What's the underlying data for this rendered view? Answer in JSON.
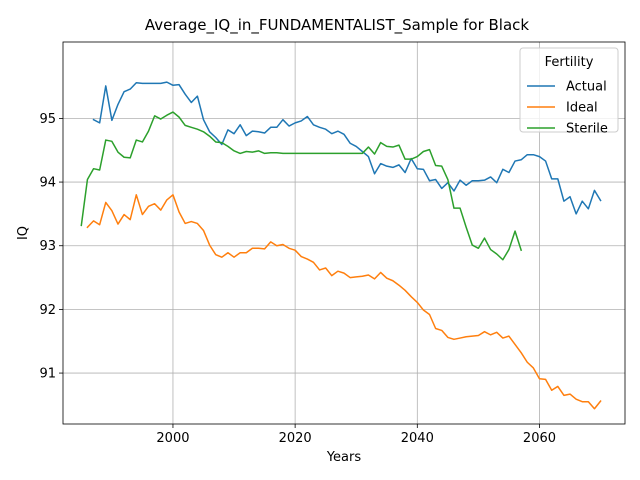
{
  "chart_data": {
    "type": "line",
    "title": "Average_IQ_in_FUNDAMENTALIST_Sample for Black",
    "xlabel": "Years",
    "ylabel": "IQ",
    "xlim": [
      1982,
      2074
    ],
    "ylim": [
      90.2,
      96.2
    ],
    "xticks": [
      2000,
      2020,
      2040,
      2060
    ],
    "yticks": [
      91,
      92,
      93,
      94,
      95
    ],
    "grid": true,
    "legend": {
      "title": "Fertility",
      "placement": "top-right"
    },
    "series": [
      {
        "name": "Actual",
        "color": "#1f77b4",
        "x": [
          1987,
          1988,
          1989,
          1990,
          1991,
          1992,
          1993,
          1994,
          1995,
          1996,
          1997,
          1998,
          1999,
          2000,
          2001,
          2002,
          2003,
          2004,
          2005,
          2006,
          2007,
          2008,
          2009,
          2010,
          2011,
          2012,
          2013,
          2014,
          2015,
          2016,
          2017,
          2018,
          2019,
          2020,
          2021,
          2022,
          2023,
          2024,
          2025,
          2026,
          2027,
          2028,
          2029,
          2030,
          2031,
          2032,
          2033,
          2034,
          2035,
          2036,
          2037,
          2038,
          2039,
          2040,
          2041,
          2042,
          2043,
          2044,
          2045,
          2046,
          2047,
          2048,
          2049,
          2050,
          2051,
          2052,
          2053,
          2054,
          2055,
          2056,
          2057,
          2058,
          2059,
          2060,
          2061,
          2062,
          2063,
          2064,
          2065,
          2066,
          2067,
          2068,
          2069,
          2070
        ],
        "values": [
          94.98,
          94.93,
          95.51,
          94.97,
          95.22,
          95.42,
          95.46,
          95.56,
          95.55,
          95.55,
          95.55,
          95.55,
          95.57,
          95.52,
          95.53,
          95.38,
          95.25,
          95.35,
          94.98,
          94.79,
          94.7,
          94.59,
          94.82,
          94.76,
          94.9,
          94.73,
          94.8,
          94.79,
          94.77,
          94.86,
          94.86,
          94.98,
          94.88,
          94.93,
          94.96,
          95.03,
          94.9,
          94.86,
          94.83,
          94.76,
          94.8,
          94.75,
          94.61,
          94.56,
          94.48,
          94.4,
          94.13,
          94.29,
          94.25,
          94.23,
          94.27,
          94.15,
          94.37,
          94.21,
          94.2,
          94.02,
          94.04,
          93.9,
          93.99,
          93.86,
          94.03,
          93.95,
          94.02,
          94.02,
          94.03,
          94.08,
          93.99,
          94.2,
          94.15,
          94.33,
          94.35,
          94.43,
          94.43,
          94.4,
          94.33,
          94.05,
          94.05,
          93.7,
          93.77,
          93.5,
          93.7,
          93.58,
          93.87,
          93.71
        ]
      },
      {
        "name": "Ideal",
        "color": "#ff7f0e",
        "x": [
          1986,
          1987,
          1988,
          1989,
          1990,
          1991,
          1992,
          1993,
          1994,
          1995,
          1996,
          1997,
          1998,
          1999,
          2000,
          2001,
          2002,
          2003,
          2004,
          2005,
          2006,
          2007,
          2008,
          2009,
          2010,
          2011,
          2012,
          2013,
          2014,
          2015,
          2016,
          2017,
          2018,
          2019,
          2020,
          2021,
          2022,
          2023,
          2024,
          2025,
          2026,
          2027,
          2028,
          2029,
          2030,
          2031,
          2032,
          2033,
          2034,
          2035,
          2036,
          2037,
          2038,
          2039,
          2040,
          2041,
          2042,
          2043,
          2044,
          2045,
          2046,
          2047,
          2048,
          2049,
          2050,
          2051,
          2052,
          2053,
          2054,
          2055,
          2056,
          2057,
          2058,
          2059,
          2060,
          2061,
          2062,
          2063,
          2064,
          2065,
          2066,
          2067,
          2068,
          2069,
          2070
        ],
        "values": [
          93.29,
          93.39,
          93.33,
          93.68,
          93.55,
          93.34,
          93.49,
          93.41,
          93.8,
          93.49,
          93.62,
          93.66,
          93.56,
          93.72,
          93.8,
          93.53,
          93.35,
          93.38,
          93.35,
          93.24,
          93.01,
          92.86,
          92.82,
          92.89,
          92.82,
          92.89,
          92.89,
          92.96,
          92.96,
          92.95,
          93.06,
          93.0,
          93.02,
          92.96,
          92.93,
          92.83,
          92.79,
          92.74,
          92.62,
          92.65,
          92.53,
          92.6,
          92.57,
          92.5,
          92.51,
          92.52,
          92.54,
          92.48,
          92.58,
          92.49,
          92.45,
          92.38,
          92.3,
          92.2,
          92.11,
          91.99,
          91.92,
          91.7,
          91.67,
          91.56,
          91.53,
          91.55,
          91.57,
          91.58,
          91.59,
          91.65,
          91.6,
          91.64,
          91.55,
          91.58,
          91.45,
          91.32,
          91.17,
          91.08,
          90.91,
          90.9,
          90.73,
          90.79,
          90.65,
          90.67,
          90.59,
          90.55,
          90.55,
          90.44,
          90.56
        ]
      },
      {
        "name": "Sterile",
        "color": "#2ca02c",
        "x": [
          1985,
          1986,
          1987,
          1988,
          1989,
          1990,
          1991,
          1992,
          1993,
          1994,
          1995,
          1996,
          1997,
          1998,
          1999,
          2000,
          2001,
          2002,
          2003,
          2004,
          2005,
          2006,
          2007,
          2008,
          2009,
          2010,
          2011,
          2012,
          2013,
          2014,
          2015,
          2016,
          2017,
          2018,
          2019,
          2020,
          2021,
          2022,
          2023,
          2024,
          2025,
          2026,
          2027,
          2028,
          2029,
          2030,
          2031,
          2032,
          2033,
          2034,
          2035,
          2036,
          2037,
          2038,
          2039,
          2040,
          2041,
          2042,
          2043,
          2044,
          2045,
          2046,
          2047,
          2048,
          2049,
          2050,
          2051,
          2052,
          2053,
          2054,
          2055,
          2056,
          2057
        ],
        "values": [
          93.32,
          94.04,
          94.21,
          94.19,
          94.66,
          94.64,
          94.47,
          94.39,
          94.38,
          94.66,
          94.63,
          94.8,
          95.04,
          94.99,
          95.05,
          95.1,
          95.02,
          94.89,
          94.86,
          94.83,
          94.79,
          94.72,
          94.63,
          94.62,
          94.56,
          94.49,
          94.45,
          94.48,
          94.47,
          94.49,
          94.45,
          94.46,
          94.46,
          94.45,
          94.45,
          94.45,
          94.45,
          94.45,
          94.45,
          94.45,
          94.45,
          94.45,
          94.45,
          94.45,
          94.45,
          94.45,
          94.45,
          94.55,
          94.44,
          94.62,
          94.56,
          94.55,
          94.58,
          94.36,
          94.36,
          94.4,
          94.48,
          94.51,
          94.26,
          94.25,
          94.04,
          93.59,
          93.59,
          93.29,
          93.01,
          92.96,
          93.12,
          92.94,
          92.87,
          92.78,
          92.94,
          93.23,
          92.93
        ]
      }
    ]
  }
}
